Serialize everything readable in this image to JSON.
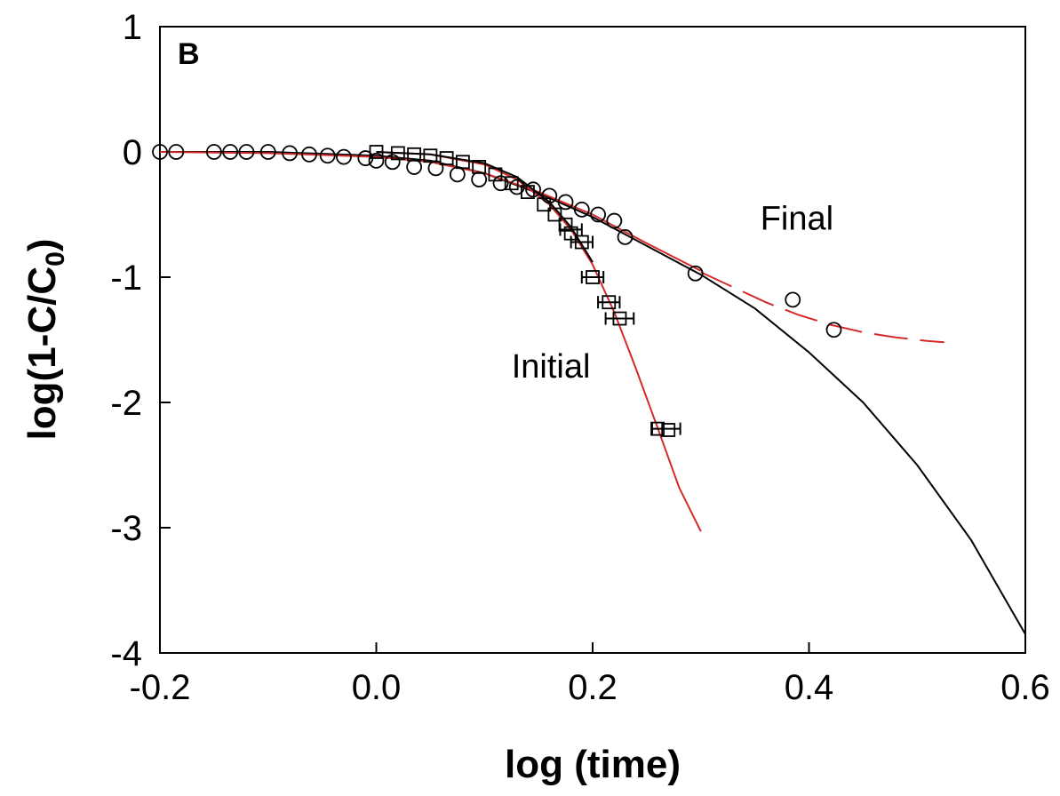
{
  "chart_data": {
    "type": "scatter",
    "panel_label": "B",
    "xlabel": "log (time)",
    "ylabel_main": "log(1-C/C",
    "ylabel_sub": "0",
    "ylabel_close": ")",
    "xlim": [
      -0.2,
      0.6
    ],
    "ylim": [
      -4,
      1
    ],
    "xticks": [
      -0.2,
      0.0,
      0.2,
      0.4,
      0.6
    ],
    "xtick_labels": [
      "-0.2",
      "0.0",
      "0.2",
      "0.4",
      "0.6"
    ],
    "yticks": [
      1,
      0,
      -1,
      -2,
      -3,
      -4
    ],
    "ytick_labels": [
      "1",
      "0",
      "-1",
      "-2",
      "-3",
      "-4"
    ],
    "grid": false,
    "annotations": [
      {
        "text": "Final",
        "x": 0.355,
        "y": -0.62
      },
      {
        "text": "Initial",
        "x": 0.125,
        "y": -1.8
      }
    ],
    "colors": {
      "fit_red": "#d42a2a",
      "fit_black": "#000000",
      "marker": "#000000"
    },
    "series": [
      {
        "marker": "circle",
        "x": [
          -0.2,
          -0.185,
          -0.15,
          -0.135,
          -0.12,
          -0.1,
          -0.08,
          -0.062,
          -0.045,
          -0.03,
          -0.01,
          0.0,
          0.015,
          0.035,
          0.055,
          0.075,
          0.095,
          0.115,
          0.13,
          0.145,
          0.16,
          0.175,
          0.19,
          0.205,
          0.22,
          0.23,
          0.295,
          0.385,
          0.423
        ],
        "y": [
          0.0,
          0.0,
          0.0,
          0.0,
          0.0,
          0.0,
          -0.01,
          -0.02,
          -0.03,
          -0.04,
          -0.05,
          -0.07,
          -0.08,
          -0.12,
          -0.13,
          -0.18,
          -0.22,
          -0.25,
          -0.28,
          -0.3,
          -0.35,
          -0.4,
          -0.46,
          -0.5,
          -0.55,
          -0.68,
          -0.97,
          -1.18,
          -1.42
        ]
      },
      {
        "marker": "square",
        "x": [
          0.0,
          0.02,
          0.035,
          0.05,
          0.065,
          0.08,
          0.095,
          0.11,
          0.125,
          0.14,
          0.155,
          0.165,
          0.175,
          0.18,
          0.19,
          0.2,
          0.215,
          0.225,
          0.26,
          0.27
        ],
        "y": [
          0.0,
          -0.01,
          -0.02,
          -0.03,
          -0.05,
          -0.08,
          -0.12,
          -0.18,
          -0.25,
          -0.32,
          -0.42,
          -0.5,
          -0.58,
          -0.65,
          -0.72,
          -1.0,
          -1.2,
          -1.33,
          -2.21,
          -2.22
        ]
      }
    ],
    "fit_lines": [
      {
        "color": "#000000",
        "style": "solid",
        "x": [
          -0.2,
          -0.1,
          0.0,
          0.05,
          0.1,
          0.15,
          0.2,
          0.25,
          0.3,
          0.35,
          0.4,
          0.45,
          0.5,
          0.55,
          0.6
        ],
        "y": [
          0.0,
          0.0,
          -0.03,
          -0.07,
          -0.17,
          -0.33,
          -0.52,
          -0.75,
          -0.98,
          -1.25,
          -1.6,
          -2.0,
          -2.5,
          -3.1,
          -3.85
        ]
      },
      {
        "color": "#d42a2a",
        "style": "solid",
        "x": [
          -0.2,
          -0.1,
          0.0,
          0.05,
          0.1,
          0.15,
          0.2,
          0.25,
          0.3
        ],
        "y": [
          0.0,
          -0.01,
          -0.04,
          -0.08,
          -0.17,
          -0.32,
          -0.5,
          -0.73,
          -0.95
        ]
      },
      {
        "color": "#d42a2a",
        "style": "dashed",
        "x": [
          0.3,
          0.33,
          0.36,
          0.39,
          0.42,
          0.45,
          0.48,
          0.51,
          0.525
        ],
        "y": [
          -0.96,
          -1.08,
          -1.2,
          -1.3,
          -1.38,
          -1.44,
          -1.48,
          -1.51,
          -1.52
        ]
      },
      {
        "color": "#d42a2a",
        "style": "solid",
        "x": [
          0.0,
          0.05,
          0.1,
          0.13,
          0.16,
          0.18,
          0.2,
          0.22,
          0.24,
          0.26,
          0.28,
          0.3
        ],
        "y": [
          0.0,
          -0.02,
          -0.1,
          -0.22,
          -0.42,
          -0.62,
          -0.9,
          -1.28,
          -1.73,
          -2.2,
          -2.68,
          -3.03
        ]
      },
      {
        "color": "#000000",
        "style": "solid",
        "x": [
          0.0,
          0.05,
          0.1,
          0.13,
          0.16,
          0.18,
          0.2
        ],
        "y": [
          0.0,
          -0.02,
          -0.09,
          -0.2,
          -0.4,
          -0.6,
          -0.88
        ]
      }
    ],
    "error_bars": [
      {
        "x": 0.18,
        "y": -0.62,
        "xerr": 0.01
      },
      {
        "x": 0.19,
        "y": -0.72,
        "xerr": 0.01
      },
      {
        "x": 0.2,
        "y": -1.0,
        "xerr": 0.01
      },
      {
        "x": 0.215,
        "y": -1.2,
        "xerr": 0.01
      },
      {
        "x": 0.225,
        "y": -1.33,
        "xerr": 0.013
      },
      {
        "x": 0.268,
        "y": -2.21,
        "xerr": 0.013
      }
    ]
  }
}
